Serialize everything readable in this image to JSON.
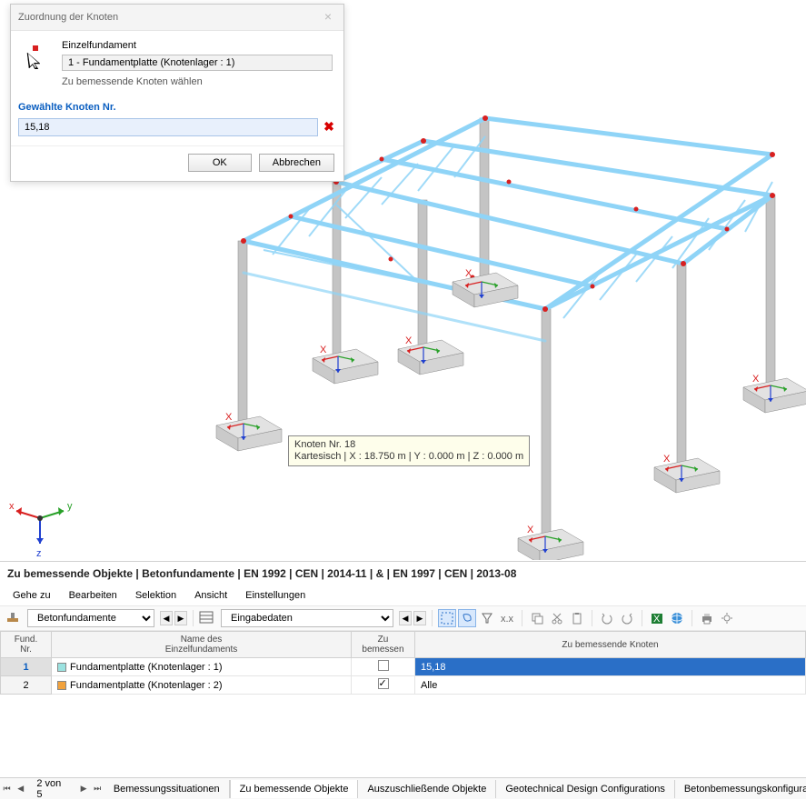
{
  "dialog": {
    "title": "Zuordnung der Knoten",
    "section_label": "Einzelfundament",
    "select_value": "1 - Fundamentplatte (Knotenlager : 1)",
    "hint": "Zu bemessende Knoten wählen",
    "input_label": "Gewählte Knoten Nr.",
    "input_value": "15,18",
    "ok": "OK",
    "cancel": "Abbrechen"
  },
  "tooltip": {
    "line1": "Knoten Nr. 18",
    "line2": "Kartesisch | X : 18.750 m | Y : 0.000 m | Z : 0.000 m"
  },
  "panel": {
    "title": "Zu bemessende Objekte | Betonfundamente | EN 1992 | CEN | 2014-11 | & | EN 1997 | CEN | 2013-08",
    "menu": [
      "Gehe zu",
      "Bearbeiten",
      "Selektion",
      "Ansicht",
      "Einstellungen"
    ],
    "combo1": "Betonfundamente",
    "combo2": "Eingabedaten",
    "columns": {
      "c1": "Fund.\nNr.",
      "c2": "Name des\nEinzelfundaments",
      "c3": "Zu\nbemessen",
      "c4": "Zu bemessende Knoten"
    },
    "rows": [
      {
        "nr": "1",
        "swatch": "#9be2e0",
        "name": "Fundamentplatte (Knotenlager : 1)",
        "checked": false,
        "nodes": "15,18",
        "selected": true
      },
      {
        "nr": "2",
        "swatch": "#f2a23c",
        "name": "Fundamentplatte (Knotenlager : 2)",
        "checked": true,
        "nodes": "Alle",
        "selected": false
      }
    ]
  },
  "tabs": {
    "counter": "2 von 5",
    "items": [
      "Bemessungssituationen",
      "Zu bemessende Objekte",
      "Auszuschließende Objekte",
      "Geotechnical Design Configurations",
      "Betonbemessungskonfigurationen"
    ],
    "active": 1
  },
  "axes": {
    "x": "x",
    "y": "y",
    "z": "z"
  },
  "colors": {
    "beam": "#8fd4f7",
    "beam_dark": "#5bb8e8",
    "column": "#b8b8b8",
    "node": "#d82020",
    "axis_x": "#d82020",
    "axis_y": "#28a028",
    "axis_z": "#2040d0",
    "foundation_fill": "#d8d8d8",
    "foundation_stroke": "#888"
  }
}
